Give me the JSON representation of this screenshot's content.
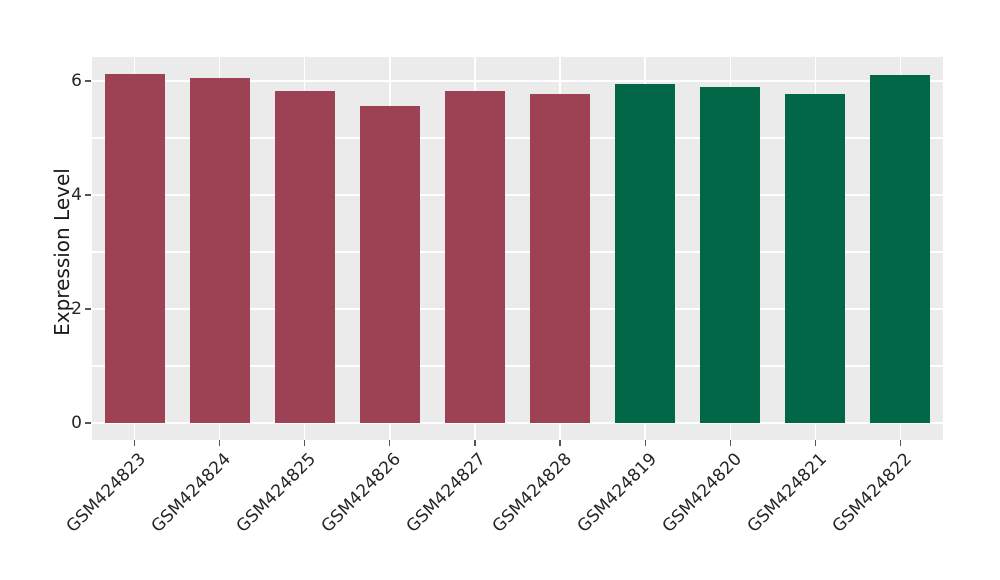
{
  "chart_data": {
    "type": "bar",
    "title": "",
    "xlabel": "",
    "ylabel": "Expression Level",
    "categories": [
      "GSM424823",
      "GSM424824",
      "GSM424825",
      "GSM424826",
      "GSM424827",
      "GSM424828",
      "GSM424819",
      "GSM424820",
      "GSM424821",
      "GSM424822"
    ],
    "values": [
      6.13,
      6.06,
      5.83,
      5.57,
      5.83,
      5.78,
      5.95,
      5.9,
      5.77,
      6.11
    ],
    "bar_colors": [
      "#9d4154",
      "#9d4154",
      "#9d4154",
      "#9d4154",
      "#9d4154",
      "#9d4154",
      "#016746",
      "#016746",
      "#016746",
      "#016746"
    ],
    "yticks": [
      0,
      2,
      4,
      6
    ],
    "ytick_labels": [
      "0",
      "2",
      "4",
      "6"
    ],
    "gridline_values": [
      0,
      1,
      2,
      3,
      4,
      5,
      6
    ],
    "ylim": [
      -0.31,
      6.42
    ],
    "grid": true,
    "legend": false,
    "xtick_rotation_deg": 45,
    "colors": {
      "panel_background": "#ebebeb",
      "grid_color": "#ffffff",
      "tick_color": "#555555",
      "text_color": "#262626",
      "group_red": "#9d4154",
      "group_green": "#016746"
    }
  }
}
